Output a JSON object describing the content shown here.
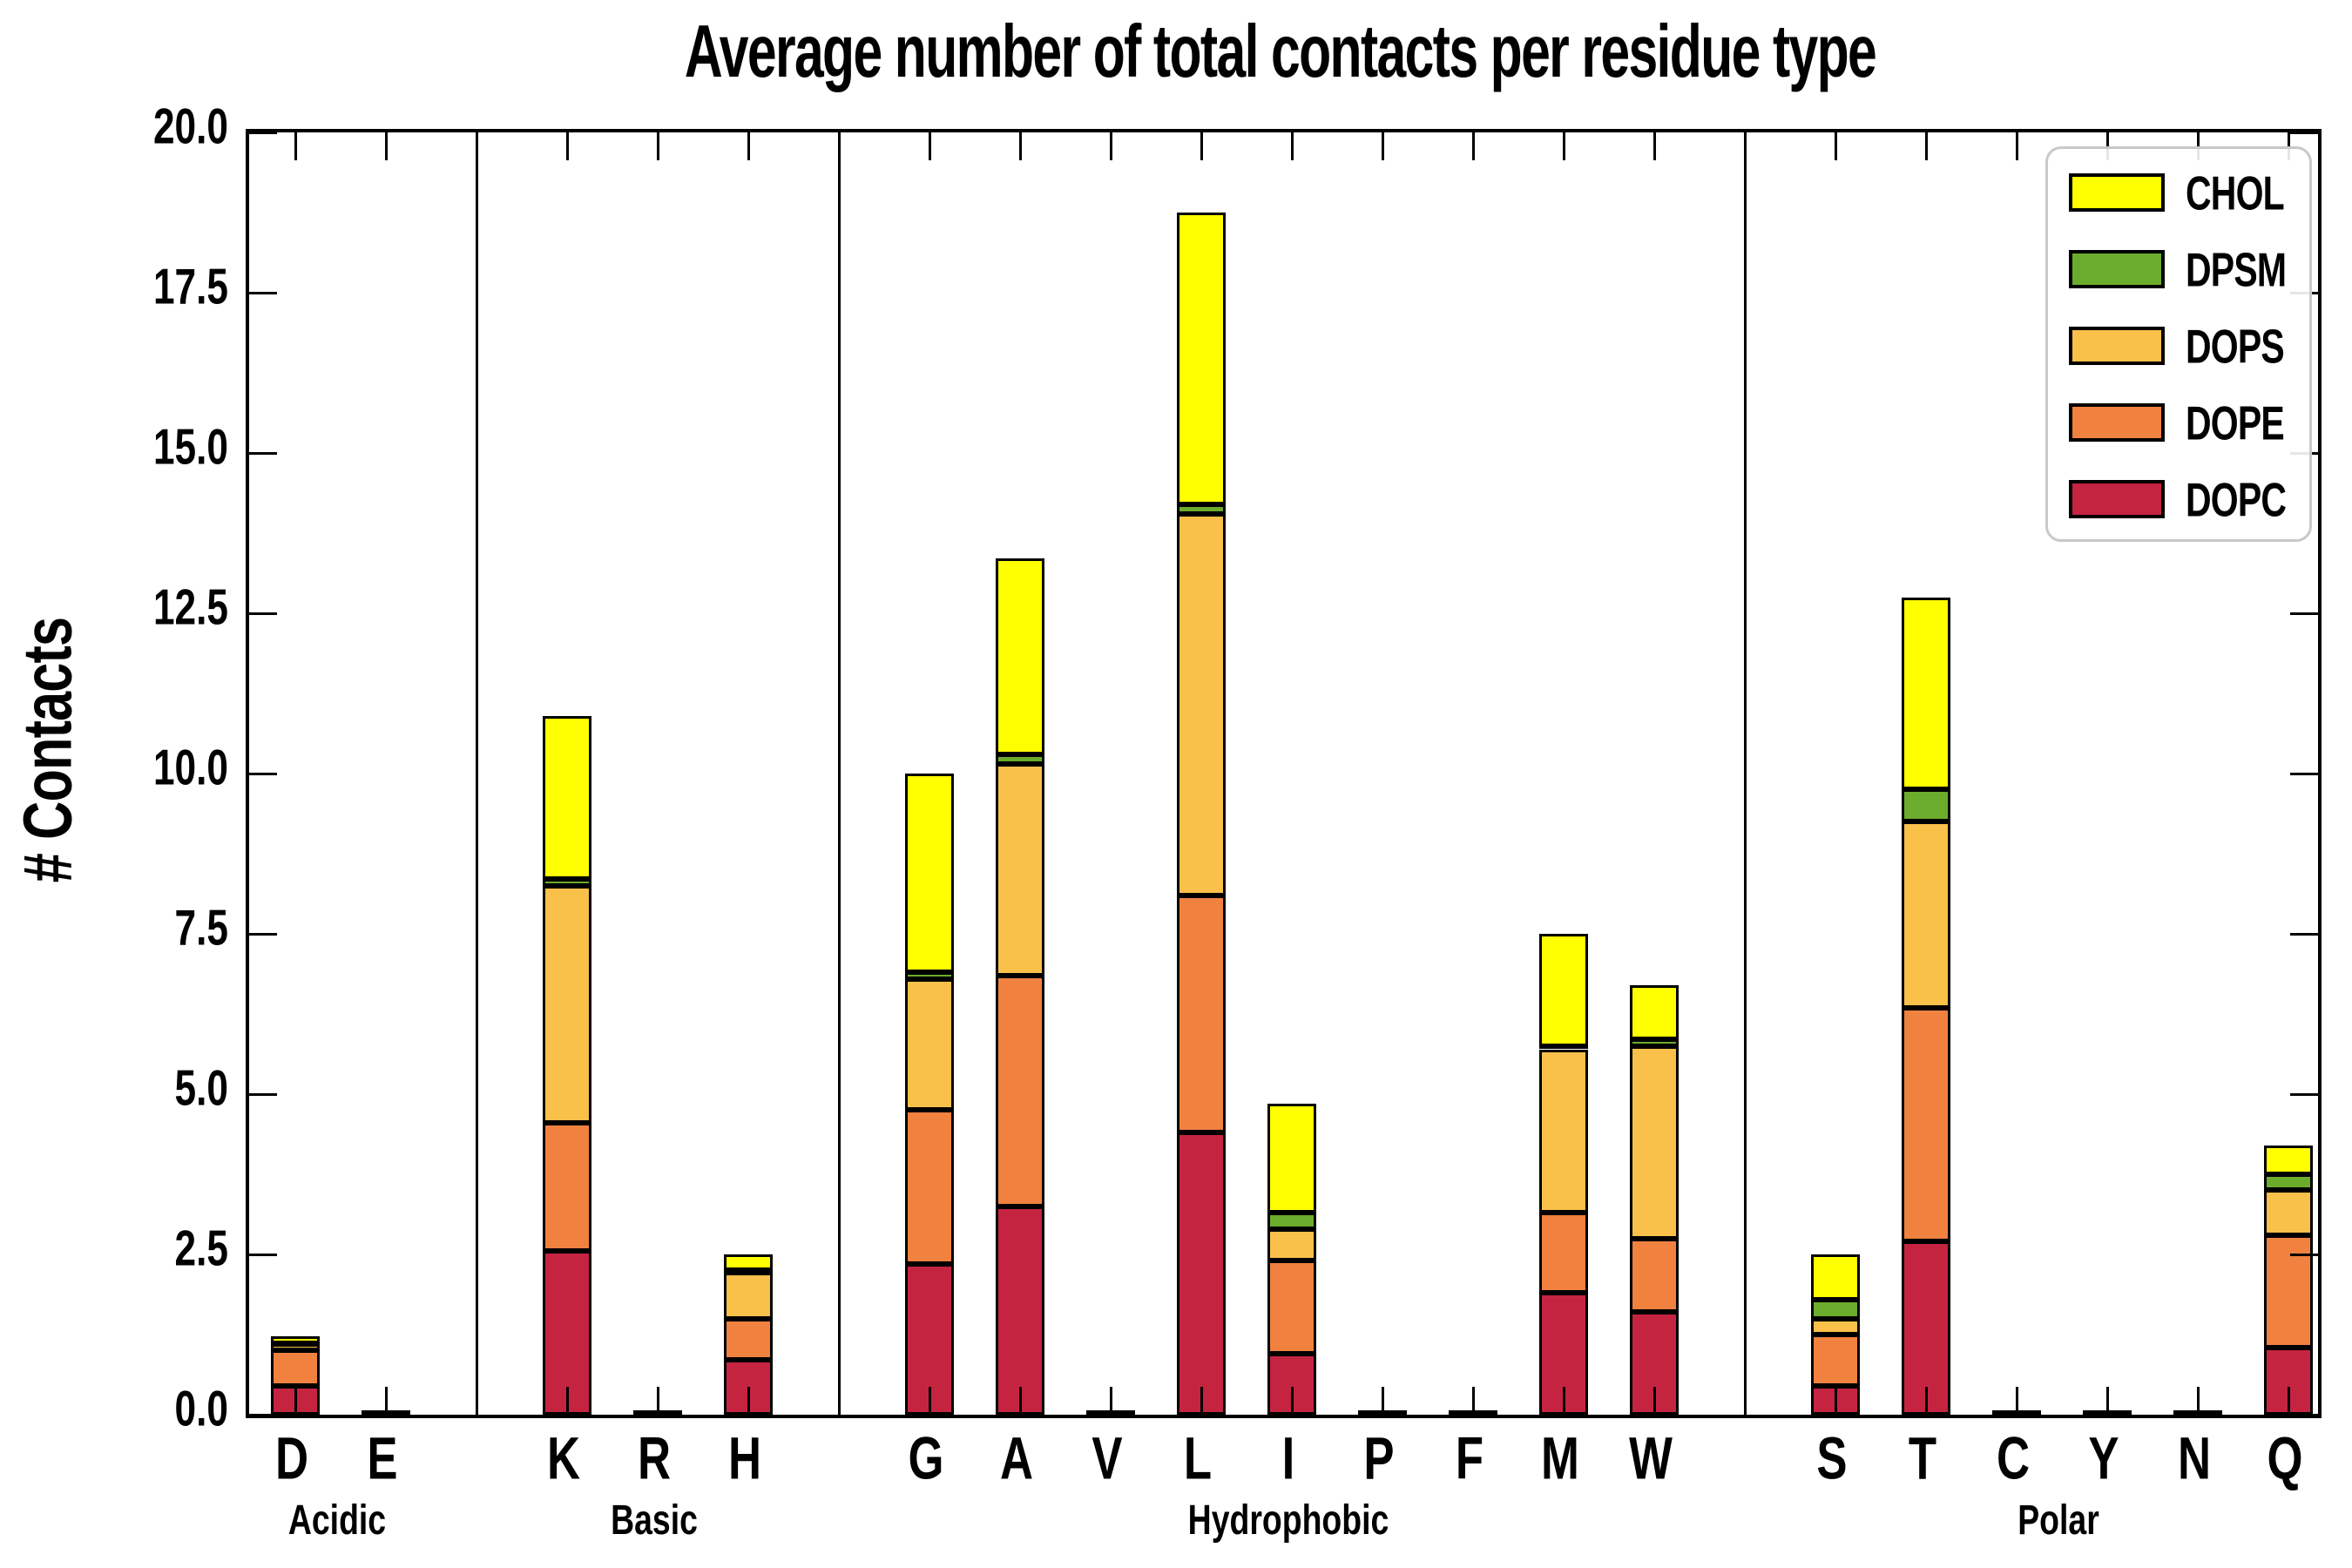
{
  "title": "Average number of total contacts per residue type",
  "ylabel": "# Contacts",
  "chart_data": {
    "type": "bar",
    "stacked": true,
    "title": "Average number of total contacts per residue type",
    "xlabel": "",
    "ylabel": "# Contacts",
    "ylim": [
      0,
      20
    ],
    "ytick_labels": [
      "0.0",
      "2.5",
      "5.0",
      "7.5",
      "10.0",
      "12.5",
      "15.0",
      "17.5",
      "20.0"
    ],
    "grid": false,
    "categories": [
      "D",
      "E",
      "K",
      "R",
      "H",
      "G",
      "A",
      "V",
      "L",
      "I",
      "P",
      "F",
      "M",
      "W",
      "S",
      "T",
      "C",
      "Y",
      "N",
      "Q"
    ],
    "groups": [
      {
        "label": "Acidic",
        "members": [
          "D",
          "E"
        ]
      },
      {
        "label": "Basic",
        "members": [
          "K",
          "R",
          "H"
        ]
      },
      {
        "label": "Hydrophobic",
        "members": [
          "G",
          "A",
          "V",
          "L",
          "I",
          "P",
          "F",
          "M",
          "W"
        ]
      },
      {
        "label": "Polar",
        "members": [
          "S",
          "T",
          "C",
          "Y",
          "N",
          "Q"
        ]
      }
    ],
    "series": [
      {
        "name": "DOPC",
        "color": "#C52441",
        "values": [
          0.45,
          0.03,
          2.55,
          0.03,
          0.85,
          2.35,
          3.25,
          0.03,
          4.4,
          0.95,
          0.03,
          0.03,
          1.9,
          1.6,
          0.45,
          2.7,
          0.03,
          0.03,
          0.03,
          1.05
        ]
      },
      {
        "name": "DOPE",
        "color": "#F0813F",
        "values": [
          0.55,
          0.0,
          2.0,
          0.0,
          0.65,
          2.4,
          3.6,
          0.0,
          3.7,
          1.45,
          0.0,
          0.0,
          1.25,
          1.15,
          0.8,
          3.65,
          0.0,
          0.0,
          0.0,
          1.75
        ]
      },
      {
        "name": "DOPS",
        "color": "#F9C04A",
        "values": [
          0.1,
          0.0,
          3.7,
          0.0,
          0.72,
          2.05,
          3.3,
          0.0,
          5.95,
          0.5,
          0.0,
          0.0,
          2.55,
          3.0,
          0.25,
          2.9,
          0.0,
          0.0,
          0.0,
          0.7
        ]
      },
      {
        "name": "DPSM",
        "color": "#6CAC2C",
        "values": [
          0.02,
          0.0,
          0.1,
          0.0,
          0.03,
          0.1,
          0.15,
          0.0,
          0.15,
          0.25,
          0.0,
          0.0,
          0.05,
          0.1,
          0.3,
          0.5,
          0.0,
          0.0,
          0.0,
          0.25
        ]
      },
      {
        "name": "CHOL",
        "color": "#FFFF00",
        "values": [
          0.1,
          0.0,
          2.55,
          0.0,
          0.25,
          3.1,
          3.05,
          0.0,
          4.55,
          1.7,
          0.0,
          0.0,
          1.75,
          0.85,
          0.7,
          3.0,
          0.0,
          0.0,
          0.0,
          0.45
        ]
      }
    ],
    "totals": [
      1.22,
      0.03,
      10.9,
      0.03,
      2.5,
      10.0,
      13.35,
      0.03,
      18.75,
      4.85,
      0.03,
      0.03,
      7.5,
      6.7,
      2.5,
      12.75,
      0.03,
      0.03,
      0.03,
      4.2
    ],
    "legend": {
      "position": "upper right",
      "entries": [
        "CHOL",
        "DPSM",
        "DOPS",
        "DOPE",
        "DOPC"
      ]
    }
  }
}
